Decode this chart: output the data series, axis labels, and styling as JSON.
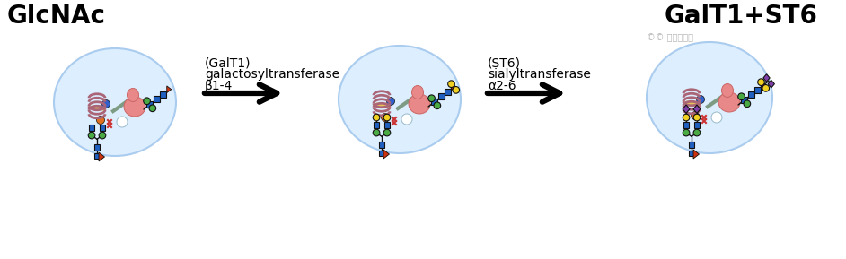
{
  "bg_color": "#ffffff",
  "title1": "GlcNAc",
  "title3": "GalT1+ST6",
  "arrow1_label1": "β1-4",
  "arrow1_label2": "galactosyltransferase",
  "arrow1_label3": "(GalT1)",
  "arrow2_label1": "α2-6",
  "arrow2_label2": "sialyltransferase",
  "arrow2_label3": "(ST6)",
  "cell_color": "#ddeeff",
  "cell_edge": "#aaccee",
  "blue_sq": "#2060c0",
  "green_dot": "#4aaa44",
  "yellow_dot": "#f0d020",
  "purple_dia": "#8040aa",
  "red_tri": "#cc3311",
  "pink_blob": "#e88888",
  "mauve_helix": "#aa6677",
  "yellow_org": "#e8c050",
  "orange_dot": "#e07020",
  "blue_dot": "#3060cc",
  "watermark": "©© 外泌体之家"
}
